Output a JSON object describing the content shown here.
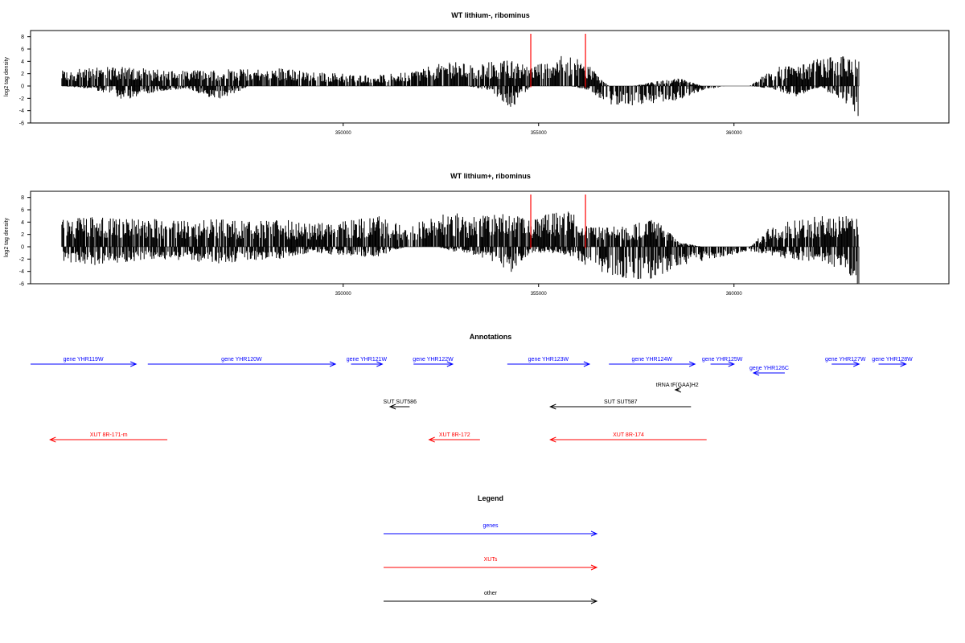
{
  "chart_data": [
    {
      "type": "bar",
      "title": "WT lithium-, ribominus",
      "ylabel": "log2 tag density",
      "xlim": [
        342000,
        365500
      ],
      "ylim": [
        -6,
        9
      ],
      "yticks": [
        -6,
        -4,
        -2,
        0,
        2,
        4,
        6,
        8
      ],
      "xticks": [
        350000,
        355000,
        360000
      ],
      "grid": false,
      "baseline": 0,
      "highlight_markers": [
        354800,
        356200
      ],
      "highlight_color": "#ff0000",
      "density_profile": [
        {
          "x": 342800,
          "pos": 2.0,
          "neg": 0.0
        },
        {
          "x": 343600,
          "pos": 2.5,
          "neg": -0.4
        },
        {
          "x": 344400,
          "pos": 2.6,
          "neg": -1.8
        },
        {
          "x": 345200,
          "pos": 2.2,
          "neg": -0.8
        },
        {
          "x": 346000,
          "pos": 2.0,
          "neg": -0.3
        },
        {
          "x": 346800,
          "pos": 2.3,
          "neg": -2.0
        },
        {
          "x": 347600,
          "pos": 2.2,
          "neg": 0.0
        },
        {
          "x": 348400,
          "pos": 2.4,
          "neg": 0.0
        },
        {
          "x": 349200,
          "pos": 1.8,
          "neg": 0.0
        },
        {
          "x": 350000,
          "pos": 1.7,
          "neg": 0.0
        },
        {
          "x": 350800,
          "pos": 1.4,
          "neg": 0.0
        },
        {
          "x": 351600,
          "pos": 1.8,
          "neg": 0.0
        },
        {
          "x": 352400,
          "pos": 2.8,
          "neg": 0.0
        },
        {
          "x": 352800,
          "pos": 3.4,
          "neg": 0.0
        },
        {
          "x": 353200,
          "pos": 2.8,
          "neg": 0.0
        },
        {
          "x": 353800,
          "pos": 3.2,
          "neg": -0.8
        },
        {
          "x": 354300,
          "pos": 3.4,
          "neg": -3.0
        },
        {
          "x": 354800,
          "pos": 2.6,
          "neg": 0.0
        },
        {
          "x": 355300,
          "pos": 3.6,
          "neg": 0.0
        },
        {
          "x": 355800,
          "pos": 4.2,
          "neg": 0.0
        },
        {
          "x": 356300,
          "pos": 2.6,
          "neg": -0.6
        },
        {
          "x": 356800,
          "pos": 0.0,
          "neg": -2.4
        },
        {
          "x": 357400,
          "pos": 0.0,
          "neg": -2.6
        },
        {
          "x": 358000,
          "pos": 0.6,
          "neg": -2.2
        },
        {
          "x": 358600,
          "pos": 1.0,
          "neg": -1.8
        },
        {
          "x": 359200,
          "pos": 0.0,
          "neg": -0.6
        },
        {
          "x": 359800,
          "pos": 0.0,
          "neg": 0.0
        },
        {
          "x": 360400,
          "pos": 0.0,
          "neg": 0.0
        },
        {
          "x": 361000,
          "pos": 2.6,
          "neg": -0.4
        },
        {
          "x": 361600,
          "pos": 2.6,
          "neg": -1.4
        },
        {
          "x": 362200,
          "pos": 3.6,
          "neg": -0.2
        },
        {
          "x": 362800,
          "pos": 4.0,
          "neg": -2.0
        },
        {
          "x": 363200,
          "pos": 3.4,
          "neg": -4.6
        }
      ]
    },
    {
      "type": "bar",
      "title": "WT lithium+, ribominus",
      "ylabel": "log2 tag density",
      "xlim": [
        342000,
        365500
      ],
      "ylim": [
        -6,
        9
      ],
      "yticks": [
        -6,
        -4,
        -2,
        0,
        2,
        4,
        6,
        8
      ],
      "xticks": [
        350000,
        355000,
        360000
      ],
      "grid": false,
      "baseline": 0,
      "highlight_markers": [
        354800,
        356200
      ],
      "highlight_color": "#ff0000",
      "density_profile": [
        {
          "x": 342800,
          "pos": 3.6,
          "neg": -2.0
        },
        {
          "x": 343600,
          "pos": 4.0,
          "neg": -2.4
        },
        {
          "x": 344400,
          "pos": 3.6,
          "neg": -2.0
        },
        {
          "x": 345200,
          "pos": 3.6,
          "neg": -1.6
        },
        {
          "x": 346000,
          "pos": 3.4,
          "neg": -1.8
        },
        {
          "x": 346800,
          "pos": 3.6,
          "neg": -2.4
        },
        {
          "x": 347600,
          "pos": 3.4,
          "neg": -1.8
        },
        {
          "x": 348400,
          "pos": 3.6,
          "neg": -1.6
        },
        {
          "x": 349200,
          "pos": 3.0,
          "neg": -0.8
        },
        {
          "x": 350000,
          "pos": 3.4,
          "neg": -1.2
        },
        {
          "x": 350800,
          "pos": 4.2,
          "neg": -1.4
        },
        {
          "x": 351600,
          "pos": 2.6,
          "neg": 0.0
        },
        {
          "x": 352400,
          "pos": 4.0,
          "neg": 0.0
        },
        {
          "x": 352800,
          "pos": 4.6,
          "neg": -0.6
        },
        {
          "x": 353200,
          "pos": 3.8,
          "neg": -0.8
        },
        {
          "x": 353800,
          "pos": 4.4,
          "neg": -2.0
        },
        {
          "x": 354300,
          "pos": 4.2,
          "neg": -3.4
        },
        {
          "x": 354800,
          "pos": 3.4,
          "neg": -0.8
        },
        {
          "x": 355300,
          "pos": 4.4,
          "neg": -0.8
        },
        {
          "x": 355800,
          "pos": 4.6,
          "neg": -1.2
        },
        {
          "x": 356300,
          "pos": 2.6,
          "neg": -2.8
        },
        {
          "x": 356800,
          "pos": 2.6,
          "neg": -3.6
        },
        {
          "x": 357400,
          "pos": 3.0,
          "neg": -4.4
        },
        {
          "x": 358000,
          "pos": 3.6,
          "neg": -4.2
        },
        {
          "x": 358600,
          "pos": 0.6,
          "neg": -2.4
        },
        {
          "x": 359200,
          "pos": 0.0,
          "neg": -2.0
        },
        {
          "x": 359800,
          "pos": 0.0,
          "neg": -1.2
        },
        {
          "x": 360400,
          "pos": 0.0,
          "neg": -0.6
        },
        {
          "x": 361000,
          "pos": 3.0,
          "neg": -1.2
        },
        {
          "x": 361600,
          "pos": 3.6,
          "neg": -1.8
        },
        {
          "x": 362200,
          "pos": 4.0,
          "neg": -2.0
        },
        {
          "x": 362800,
          "pos": 4.4,
          "neg": -3.0
        },
        {
          "x": 363200,
          "pos": 3.6,
          "neg": -5.6
        }
      ]
    }
  ],
  "annotations": {
    "title": "Annotations",
    "genome_range": [
      342000,
      365500
    ],
    "features": [
      {
        "label": "gene YHR119W",
        "kind": "gene",
        "start": 342000,
        "end": 344700,
        "strand": "+",
        "row": 0
      },
      {
        "label": "gene YHR120W",
        "kind": "gene",
        "start": 345000,
        "end": 349800,
        "strand": "+",
        "row": 0
      },
      {
        "label": "gene YHR121W",
        "kind": "gene",
        "start": 350200,
        "end": 351000,
        "strand": "+",
        "row": 0
      },
      {
        "label": "gene YHR122W",
        "kind": "gene",
        "start": 351800,
        "end": 352800,
        "strand": "+",
        "row": 0
      },
      {
        "label": "gene YHR123W",
        "kind": "gene",
        "start": 354200,
        "end": 356300,
        "strand": "+",
        "row": 0
      },
      {
        "label": "gene YHR124W",
        "kind": "gene",
        "start": 356800,
        "end": 359000,
        "strand": "+",
        "row": 0
      },
      {
        "label": "gene YHR125W",
        "kind": "gene",
        "start": 359400,
        "end": 360000,
        "strand": "+",
        "row": 0
      },
      {
        "label": "gene YHR126C",
        "kind": "gene",
        "start": 360500,
        "end": 361300,
        "strand": "-",
        "row": 1
      },
      {
        "label": "gene YHR127W",
        "kind": "gene",
        "start": 362500,
        "end": 363200,
        "strand": "+",
        "row": 0
      },
      {
        "label": "gene YHR128W",
        "kind": "gene",
        "start": 363700,
        "end": 364400,
        "strand": "+",
        "row": 0
      },
      {
        "label": "tRNA tF(GAA)H2",
        "kind": "other",
        "start": 358500,
        "end": 358600,
        "strand": "-",
        "row": 2
      },
      {
        "label": "SUT SUT586",
        "kind": "other",
        "start": 351200,
        "end": 351700,
        "strand": "-",
        "row": 3
      },
      {
        "label": "SUT SUT587",
        "kind": "other",
        "start": 355300,
        "end": 358900,
        "strand": "-",
        "row": 3
      },
      {
        "label": "XUT 8R-171-m",
        "kind": "xut",
        "start": 342500,
        "end": 345500,
        "strand": "-",
        "row": 4
      },
      {
        "label": "XUT 8R-172",
        "kind": "xut",
        "start": 352200,
        "end": 353500,
        "strand": "-",
        "row": 4
      },
      {
        "label": "XUT 8R-174",
        "kind": "xut",
        "start": 355300,
        "end": 359300,
        "strand": "-",
        "row": 4
      }
    ]
  },
  "legend": {
    "title": "Legend",
    "items": [
      {
        "label": "genes",
        "color": "#0000ff"
      },
      {
        "label": "XUTs",
        "color": "#ff0000"
      },
      {
        "label": "other",
        "color": "#000000"
      }
    ]
  },
  "colors": {
    "gene": "#0000ff",
    "xut": "#ff0000",
    "other": "#000000",
    "bars": "#000000",
    "baseline": "#808080"
  }
}
